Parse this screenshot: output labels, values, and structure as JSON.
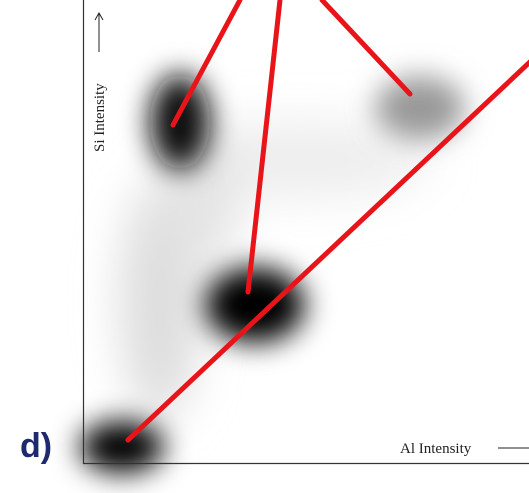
{
  "panel_label": "d)",
  "x_axis_label": "Al Intensity",
  "y_axis_label": "Si Intensity"
}
